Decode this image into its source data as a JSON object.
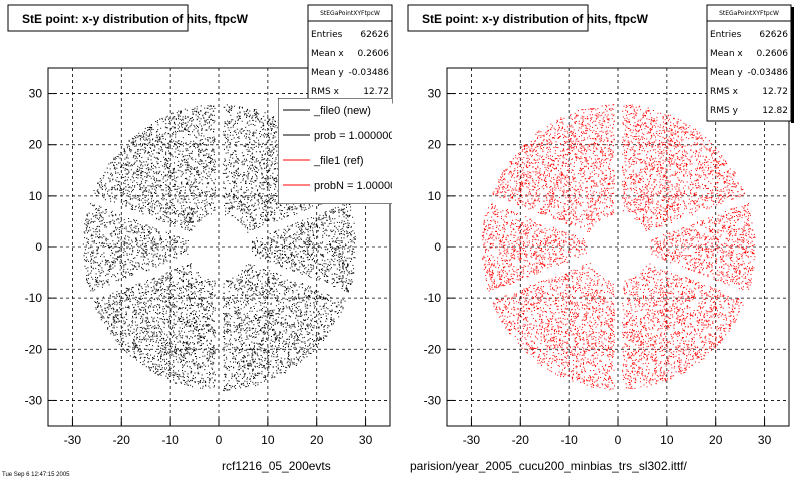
{
  "chart_data": [
    {
      "type": "scatter",
      "title": "StE point: x-y distribution of hits, ftpcW",
      "xlim": [
        -35,
        35
      ],
      "ylim": [
        -35,
        35
      ],
      "x_ticks": [
        -30,
        -20,
        -10,
        0,
        10,
        20,
        30
      ],
      "y_ticks": [
        -30,
        -20,
        -10,
        0,
        10,
        20,
        30
      ],
      "grid": true,
      "color": "#000000",
      "distribution": {
        "inner_radius": 6.5,
        "outer_radius": 28,
        "gap_angles_deg": [
          90,
          270,
          20,
          160,
          200,
          340
        ]
      },
      "bottom_label": "rcf1216_05_200evts",
      "stats": {
        "name": "StEGaPointXYFtpcW",
        "rows": [
          {
            "label": "Entries",
            "value": "62626"
          },
          {
            "label": "Mean x",
            "value": "0.2606"
          },
          {
            "label": "Mean y",
            "value": "-0.03486"
          },
          {
            "label": "RMS x",
            "value": "12.72"
          }
        ]
      },
      "legend": {
        "placement": "top-right",
        "entries": [
          {
            "label": "_file0 (new)",
            "color": "#000000"
          },
          {
            "label": "prob = 1.000000",
            "color": "#000000"
          },
          {
            "label": "_file1 (ref)",
            "color": "#ff0000"
          },
          {
            "label": "probN = 1.000000",
            "color": "#ff0000"
          }
        ]
      }
    },
    {
      "type": "scatter",
      "title": "StE point: x-y distribution of hits, ftpcW",
      "xlim": [
        -35,
        35
      ],
      "ylim": [
        -35,
        35
      ],
      "x_ticks": [
        -30,
        -20,
        -10,
        0,
        10,
        20,
        30
      ],
      "y_ticks": [
        -30,
        -20,
        -10,
        0,
        10,
        20,
        30
      ],
      "grid": true,
      "color": "#ff0000",
      "distribution": {
        "inner_radius": 6.5,
        "outer_radius": 28,
        "gap_angles_deg": [
          90,
          270,
          20,
          160,
          200,
          340
        ]
      },
      "bottom_label": "parision/year_2005_cucu200_minbias_trs_sl302.ittf/",
      "stats": {
        "name": "StEGaPointXYFtpcW",
        "rows": [
          {
            "label": "Entries",
            "value": "62626"
          },
          {
            "label": "Mean x",
            "value": "0.2606"
          },
          {
            "label": "Mean y",
            "value": "-0.03486"
          },
          {
            "label": "RMS x",
            "value": "12.72"
          },
          {
            "label": "RMS y",
            "value": "12.82"
          }
        ]
      }
    }
  ],
  "footer": {
    "small_text": "Tue Sep 6 12:47:15 2005"
  }
}
